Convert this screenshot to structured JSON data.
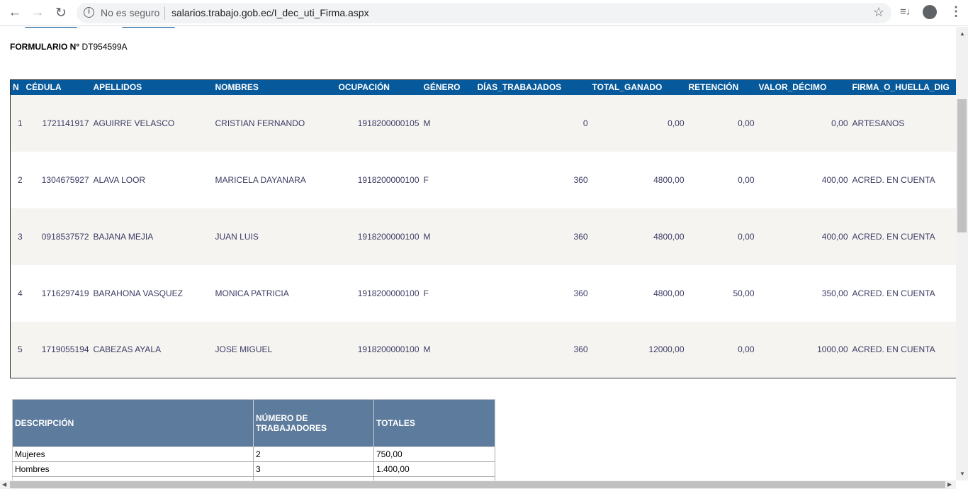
{
  "browser": {
    "security_label": "No es seguro",
    "url": "salarios.trabajo.gob.ec/I_dec_uti_Firma.aspx"
  },
  "form": {
    "label": "FORMULARIO N°",
    "number": "DT954599A"
  },
  "table": {
    "headers": [
      "N",
      "CÉDULA",
      "APELLIDOS",
      "NOMBRES",
      "OCUPACIÓN",
      "GÉNERO",
      "DÍAS_TRABAJADOS",
      "TOTAL_GANADO",
      "RETENCIÓN",
      "VALOR_DÉCIMO",
      "FIRMA_O_HUELLA_DIG"
    ],
    "rows": [
      [
        "1",
        "1721141917",
        "AGUIRRE VELASCO",
        "CRISTIAN FERNANDO",
        "1918200000105",
        "M",
        "0",
        "0,00",
        "0,00",
        "0,00",
        "ARTESANOS"
      ],
      [
        "2",
        "1304675927",
        "ALAVA LOOR",
        "MARICELA DAYANARA",
        "1918200000100",
        "F",
        "360",
        "4800,00",
        "0,00",
        "400,00",
        "ACRED. EN CUENTA"
      ],
      [
        "3",
        "0918537572",
        "BAJANA MEJIA",
        "JUAN LUIS",
        "1918200000100",
        "M",
        "360",
        "4800,00",
        "0,00",
        "400,00",
        "ACRED. EN CUENTA"
      ],
      [
        "4",
        "1716297419",
        "BARAHONA VASQUEZ",
        "MONICA PATRICIA",
        "1918200000100",
        "F",
        "360",
        "4800,00",
        "50,00",
        "350,00",
        "ACRED. EN CUENTA"
      ],
      [
        "5",
        "1719055194",
        "CABEZAS AYALA",
        "JOSE MIGUEL",
        "1918200000100",
        "M",
        "360",
        "12000,00",
        "0,00",
        "1000,00",
        "ACRED. EN CUENTA"
      ]
    ]
  },
  "summary": {
    "headers": [
      "DESCRIPCIÓN",
      "NÚMERO DE TRABAJADORES",
      "TOTALES"
    ],
    "rows": [
      [
        "Mujeres",
        "2",
        "750,00"
      ],
      [
        "Hombres",
        "3",
        "1.400,00"
      ]
    ]
  },
  "colors": {
    "header_blue": "#06599a",
    "summary_header": "#5d7b9d",
    "row_alt": "#f5f4f1"
  }
}
